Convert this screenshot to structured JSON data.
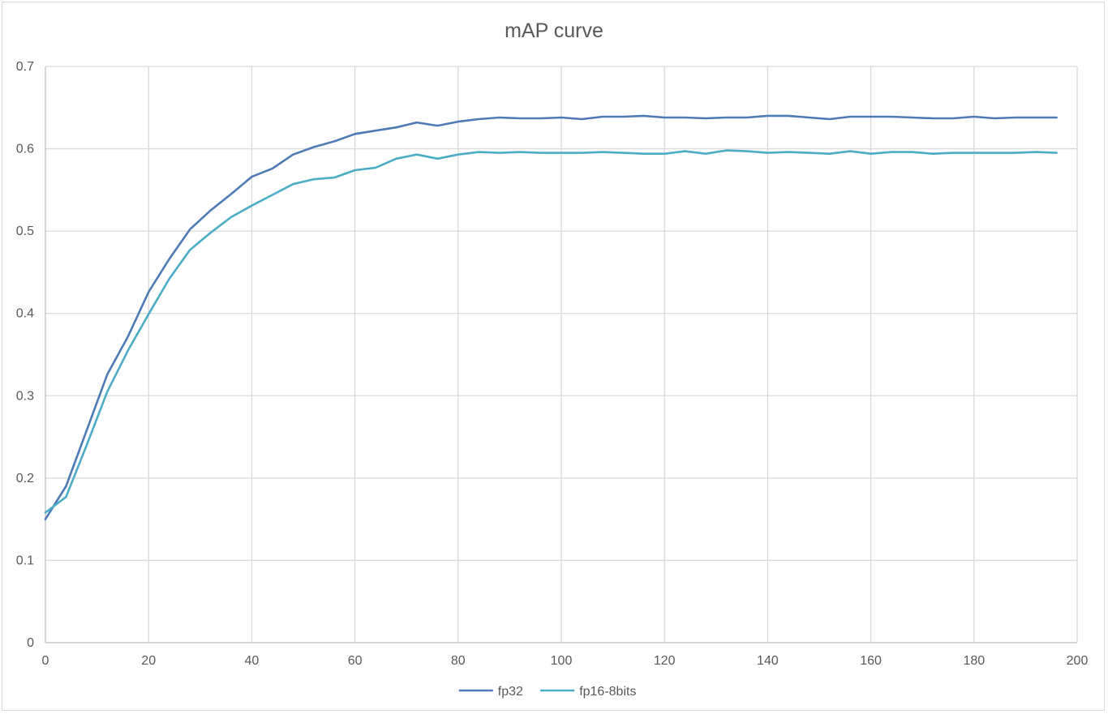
{
  "chart_data": {
    "type": "line",
    "title": "mAP curve",
    "xlabel": "",
    "ylabel": "",
    "xlim": [
      0,
      200
    ],
    "ylim": [
      0,
      0.7
    ],
    "x_ticks": [
      0,
      20,
      40,
      60,
      80,
      100,
      120,
      140,
      160,
      180,
      200
    ],
    "y_ticks": [
      0,
      0.1,
      0.2,
      0.3,
      0.4,
      0.5,
      0.6,
      0.7
    ],
    "x_tick_labels": [
      "0",
      "20",
      "40",
      "60",
      "80",
      "100",
      "120",
      "140",
      "160",
      "180",
      "200"
    ],
    "y_tick_labels": [
      "0",
      "0.1",
      "0.2",
      "0.3",
      "0.4",
      "0.5",
      "0.6",
      "0.7"
    ],
    "grid": true,
    "legend_position": "bottom",
    "x": [
      0,
      4,
      8,
      12,
      16,
      20,
      24,
      28,
      32,
      36,
      40,
      44,
      48,
      52,
      56,
      60,
      64,
      68,
      72,
      76,
      80,
      84,
      88,
      92,
      96,
      100,
      104,
      108,
      112,
      116,
      120,
      124,
      128,
      132,
      136,
      140,
      144,
      148,
      152,
      156,
      160,
      164,
      168,
      172,
      176,
      180,
      184,
      188,
      192,
      196
    ],
    "series": [
      {
        "name": "fp32",
        "color": "#4e7ab5",
        "values": [
          0.15,
          0.19,
          0.258,
          0.326,
          0.372,
          0.426,
          0.466,
          0.502,
          0.525,
          0.545,
          0.566,
          0.576,
          0.593,
          0.602,
          0.609,
          0.618,
          0.622,
          0.626,
          0.632,
          0.628,
          0.633,
          0.636,
          0.638,
          0.637,
          0.637,
          0.638,
          0.636,
          0.639,
          0.639,
          0.64,
          0.638,
          0.638,
          0.637,
          0.638,
          0.638,
          0.64,
          0.64,
          0.638,
          0.636,
          0.639,
          0.639,
          0.639,
          0.638,
          0.637,
          0.637,
          0.639,
          0.637,
          0.638,
          0.638,
          0.638
        ]
      },
      {
        "name": "fp16-8bits",
        "color": "#4bacc6",
        "values": [
          0.158,
          0.177,
          0.24,
          0.305,
          0.355,
          0.399,
          0.442,
          0.477,
          0.498,
          0.517,
          0.531,
          0.544,
          0.557,
          0.563,
          0.565,
          0.574,
          0.577,
          0.588,
          0.593,
          0.588,
          0.593,
          0.596,
          0.595,
          0.596,
          0.595,
          0.595,
          0.595,
          0.596,
          0.595,
          0.594,
          0.594,
          0.597,
          0.594,
          0.598,
          0.597,
          0.595,
          0.596,
          0.595,
          0.594,
          0.597,
          0.594,
          0.596,
          0.596,
          0.594,
          0.595,
          0.595,
          0.595,
          0.595,
          0.596,
          0.595
        ]
      }
    ]
  }
}
